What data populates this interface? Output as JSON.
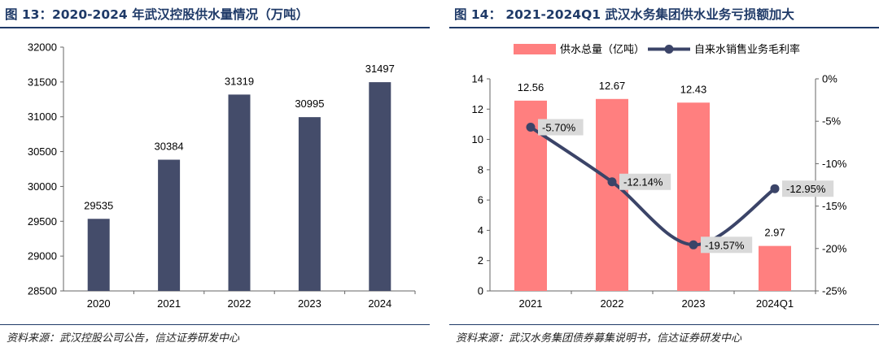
{
  "left_panel": {
    "title": "图 13：2020-2024 年武汉控股供水量情况（万吨）",
    "source": "资料来源：武汉控股公司公告，信达证券研发中心"
  },
  "right_panel": {
    "title": "图 14：  2021-2024Q1 武汉水务集团供水业务亏损额加大",
    "source": "资料来源：武汉水务集团债券募集说明书，信达证券研发中心"
  },
  "chart_data": [
    {
      "type": "bar",
      "title": "图 13：2020-2024 年武汉控股供水量情况（万吨）",
      "categories": [
        "2020",
        "2021",
        "2022",
        "2023",
        "2024"
      ],
      "values": [
        29535,
        30384,
        31319,
        30995,
        31497
      ],
      "data_labels": [
        "29535",
        "30384",
        "31319",
        "30995",
        "31497"
      ],
      "ylim": [
        28500,
        32000
      ],
      "yticks": [
        28500,
        29000,
        29500,
        30000,
        30500,
        31000,
        31500,
        32000
      ],
      "ytick_labels": [
        "28500",
        "29000",
        "29500",
        "30000",
        "30500",
        "31000",
        "31500",
        "32000"
      ],
      "grid": false,
      "colors": {
        "bar": "#444c6a"
      }
    },
    {
      "type": "bar",
      "title": "图 14：  2021-2024Q1 武汉水务集团供水业务亏损额加大",
      "categories": [
        "2021",
        "2022",
        "2023",
        "2024Q1"
      ],
      "series": [
        {
          "name": "供水总量（亿吨）",
          "type": "bar",
          "axis": "left",
          "values": [
            12.56,
            12.67,
            12.43,
            2.97
          ],
          "data_labels": [
            "12.56",
            "12.67",
            "12.43",
            "2.97"
          ],
          "color": "#ff7f7f"
        },
        {
          "name": "自来水销售业务毛利率",
          "type": "line",
          "axis": "right",
          "values": [
            -5.7,
            -12.14,
            -19.57,
            -12.95
          ],
          "data_labels": [
            "-5.70%",
            "-12.14%",
            "-19.57%",
            "-12.95%"
          ],
          "color": "#3b4468"
        }
      ],
      "ylim_left": [
        0,
        14
      ],
      "yticks_left": [
        0,
        2,
        4,
        6,
        8,
        10,
        12,
        14
      ],
      "ytick_labels_left": [
        "0",
        "2",
        "4",
        "6",
        "8",
        "10",
        "12",
        "14"
      ],
      "ylim_right": [
        -25,
        0
      ],
      "yticks_right": [
        0,
        -5,
        -10,
        -15,
        -20,
        -25
      ],
      "ytick_labels_right": [
        "0%",
        "-5%",
        "-10%",
        "-15%",
        "-20%",
        "-25%"
      ],
      "legend": "top",
      "grid": false
    }
  ]
}
